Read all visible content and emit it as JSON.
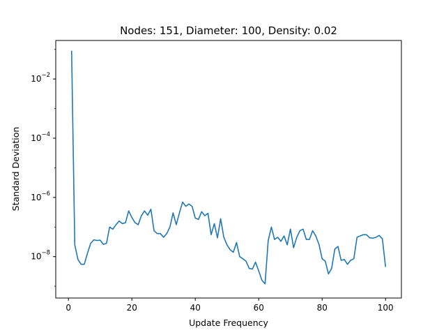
{
  "chart_data": {
    "type": "line",
    "title": "Nodes: 151, Diameter: 100, Density: 0.02",
    "xlabel": "Update Frequency",
    "ylabel": "Standard Deviation",
    "xlim": [
      -4,
      105
    ],
    "ylim": [
      4e-10,
      0.2
    ],
    "yscale": "log",
    "grid": false,
    "color": "#1f77b4",
    "xticks": [
      0,
      20,
      40,
      60,
      80,
      100
    ],
    "yticks": [
      {
        "value": 1e-08,
        "base": "10",
        "exp": "−8"
      },
      {
        "value": 1e-06,
        "base": "10",
        "exp": "−6"
      },
      {
        "value": 0.0001,
        "base": "10",
        "exp": "−4"
      },
      {
        "value": 0.01,
        "base": "10",
        "exp": "−2"
      }
    ],
    "series": [
      {
        "x": [
          1,
          2,
          3,
          4,
          5,
          6,
          7,
          8,
          9,
          10,
          11,
          12,
          13,
          14,
          15,
          16,
          17,
          18,
          19,
          20,
          21,
          22,
          23,
          24,
          25,
          26,
          27,
          28,
          29,
          30,
          31,
          32,
          33,
          34,
          35,
          36,
          37,
          38,
          39,
          40,
          41,
          42,
          43,
          44,
          45,
          46,
          47,
          48,
          49,
          50,
          51,
          52,
          53,
          54,
          55,
          56,
          57,
          58,
          59,
          60,
          61,
          62,
          63,
          64,
          65,
          66,
          67,
          68,
          69,
          70,
          71,
          72,
          73,
          74,
          75,
          76,
          77,
          78,
          79,
          80,
          81,
          82,
          83,
          84,
          85,
          86,
          87,
          88,
          89,
          90,
          91,
          92,
          93,
          94,
          95,
          96,
          97,
          98,
          99,
          100
        ],
        "y": [
          0.09,
          2.5e-08,
          8e-09,
          5.5e-09,
          5.5e-09,
          1.3e-08,
          2.8e-08,
          3.7e-08,
          3.5e-08,
          3.6e-08,
          2.6e-08,
          2.8e-08,
          1e-07,
          8.5e-08,
          1.2e-07,
          1.6e-07,
          1.3e-07,
          1.4e-07,
          3.5e-07,
          2.1e-07,
          1.4e-07,
          1.2e-07,
          2.4e-07,
          3.5e-07,
          2.5e-07,
          4e-07,
          7.5e-08,
          6e-08,
          6e-08,
          4.5e-08,
          6e-08,
          1e-07,
          3e-07,
          1.2e-07,
          3e-07,
          7e-07,
          5e-07,
          6e-07,
          5e-07,
          2e-07,
          1.8e-07,
          3.3e-07,
          2.4e-07,
          2.9e-07,
          5.5e-08,
          1.3e-07,
          4.3e-08,
          1.9e-07,
          4.5e-08,
          2.5e-08,
          1.7e-08,
          1.4e-08,
          3e-08,
          1e-08,
          8.5e-09,
          7e-09,
          4e-09,
          3.8e-09,
          6.5e-09,
          3.3e-09,
          1.6e-09,
          1.2e-09,
          3.5e-08,
          1e-07,
          3.8e-08,
          4.5e-08,
          3.3e-08,
          5e-08,
          2.5e-08,
          8.5e-08,
          2e-08,
          4.5e-08,
          7.5e-08,
          8.5e-08,
          3.8e-08,
          3.8e-08,
          7.5e-08,
          5e-08,
          2.6e-08,
          8.5e-09,
          7e-09,
          2.6e-09,
          4e-09,
          1.8e-08,
          2.2e-08,
          7.5e-09,
          8e-09,
          5.5e-09,
          7.5e-09,
          8.5e-09,
          4.5e-08,
          5e-08,
          5.5e-08,
          5.5e-08,
          4.3e-08,
          4.2e-08,
          4.5e-08,
          5.2e-08,
          4e-08,
          4.5e-09
        ]
      }
    ]
  }
}
